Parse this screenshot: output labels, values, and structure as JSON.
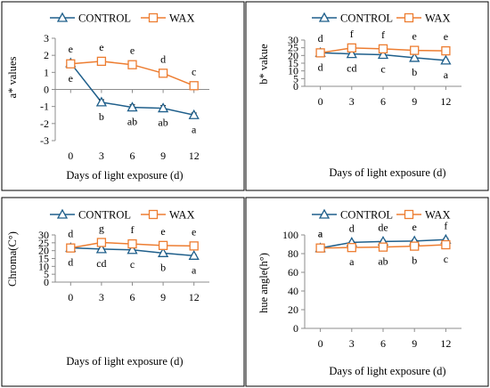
{
  "colors": {
    "control": "#1f5f8b",
    "wax": "#ed7d31"
  },
  "chart_data": [
    {
      "type": "line",
      "xlabel": "Days of light exposure (d)",
      "ylabel": "a* values",
      "categories": [
        "0",
        "3",
        "6",
        "9",
        "12"
      ],
      "ylim": [
        -3,
        3
      ],
      "yticks": [
        "-3",
        "-2",
        "-1",
        "0",
        "1",
        "2",
        "3"
      ],
      "series": [
        {
          "name": "CONTROL",
          "values": [
            1.55,
            -0.75,
            -1.05,
            -1.1,
            -1.5
          ],
          "errors": [
            0.12,
            0.15,
            0.15,
            0.15,
            0.12
          ],
          "letters": [
            "e",
            "b",
            "ab",
            "ab",
            "a"
          ]
        },
        {
          "name": "WAX",
          "values": [
            1.5,
            1.65,
            1.45,
            0.95,
            0.22
          ],
          "errors": [
            0.12,
            0.18,
            0.2,
            0.2,
            0.22
          ],
          "letters": [
            "e",
            "e",
            "e",
            "d",
            "c"
          ]
        }
      ]
    },
    {
      "type": "line",
      "xlabel": "Days of light exposure (d)",
      "ylabel": "b* vakue",
      "categories": [
        "0",
        "3",
        "6",
        "9",
        "12"
      ],
      "ylim": [
        0,
        30
      ],
      "yticks": [
        "0",
        "5",
        "10",
        "15",
        "20",
        "25",
        "30"
      ],
      "series": [
        {
          "name": "CONTROL",
          "values": [
            21.8,
            21.0,
            20.5,
            18.5,
            16.8
          ],
          "errors": [
            0.6,
            0.6,
            0.6,
            0.6,
            0.6
          ],
          "letters": [
            "d",
            "cd",
            "c",
            "b",
            "a"
          ]
        },
        {
          "name": "WAX",
          "values": [
            21.7,
            24.9,
            24.3,
            23.3,
            23.0
          ],
          "errors": [
            0.6,
            0.7,
            0.6,
            0.6,
            0.6
          ],
          "letters": [
            "d",
            "f",
            "f",
            "e",
            "e"
          ]
        }
      ]
    },
    {
      "type": "line",
      "xlabel": "Days of light exposure (d)",
      "ylabel": "Chroma(C°)",
      "categories": [
        "0",
        "3",
        "6",
        "9",
        "12"
      ],
      "ylim": [
        0,
        30
      ],
      "yticks": [
        "0",
        "5",
        "10",
        "15",
        "20",
        "25",
        "30"
      ],
      "series": [
        {
          "name": "CONTROL",
          "values": [
            21.8,
            21.0,
            20.5,
            18.5,
            16.8
          ],
          "errors": [
            0.6,
            0.6,
            0.6,
            0.6,
            0.6
          ],
          "letters": [
            "d",
            "cd",
            "c",
            "b",
            "a"
          ]
        },
        {
          "name": "WAX",
          "values": [
            21.7,
            25.2,
            24.3,
            23.3,
            23.0
          ],
          "errors": [
            0.6,
            0.7,
            0.6,
            0.6,
            0.6
          ],
          "letters": [
            "d",
            "g",
            "f",
            "e",
            "e"
          ]
        }
      ]
    },
    {
      "type": "line",
      "xlabel": "Days of light exposure (d)",
      "ylabel": "hue angle(h°)",
      "categories": [
        "0",
        "3",
        "6",
        "9",
        "12"
      ],
      "ylim": [
        0,
        100
      ],
      "yticks": [
        "0",
        "20",
        "40",
        "60",
        "80",
        "100"
      ],
      "series": [
        {
          "name": "CONTROL",
          "values": [
            86,
            92,
            93,
            93.5,
            95
          ],
          "errors": [
            1.2,
            1.2,
            1.2,
            1.2,
            1.2
          ],
          "letters": [
            "a",
            "d",
            "de",
            "e",
            "f"
          ]
        },
        {
          "name": "WAX",
          "values": [
            86,
            86.5,
            87,
            88,
            89.5
          ],
          "errors": [
            1.2,
            1.2,
            1.2,
            1.2,
            1.2
          ],
          "letters": [
            "a",
            "a",
            "ab",
            "b",
            "c"
          ]
        }
      ]
    }
  ]
}
